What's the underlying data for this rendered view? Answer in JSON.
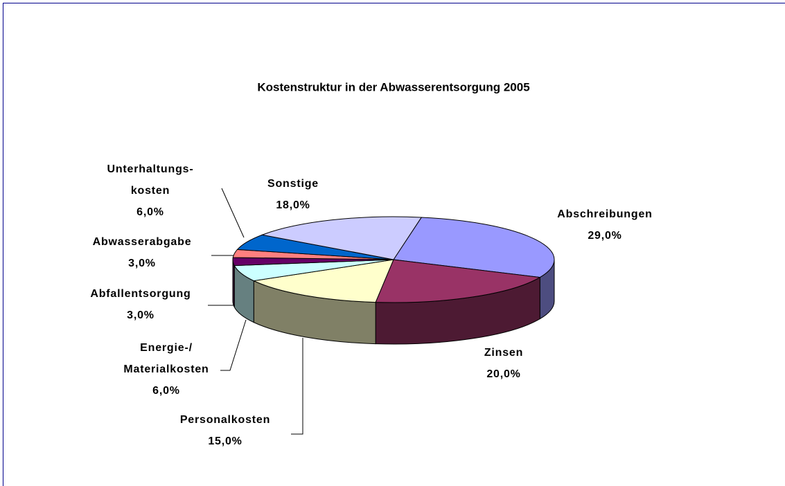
{
  "chart_data": {
    "type": "pie3d",
    "title": "Kostenstruktur in der Abwasserentsorgung 2005",
    "categories": [
      "Abschreibungen",
      "Zinsen",
      "Personalkosten",
      "Energie-/\nMaterialkosten",
      "Abfallentsorgung",
      "Abwasserabgabe",
      "Unterhaltungs-\nkosten",
      "Sonstige"
    ],
    "values": [
      29,
      20,
      15,
      6,
      3,
      3,
      6,
      18
    ],
    "value_labels": [
      "29,0%",
      "20,0%",
      "15,0%",
      "6,0%",
      "3,0%",
      "3,0%",
      "6,0%",
      "18,0%"
    ],
    "colors": [
      "#9999ff",
      "#993366",
      "#ffffcc",
      "#ccffff",
      "#660066",
      "#ff8080",
      "#0066cc",
      "#ccccff"
    ]
  }
}
